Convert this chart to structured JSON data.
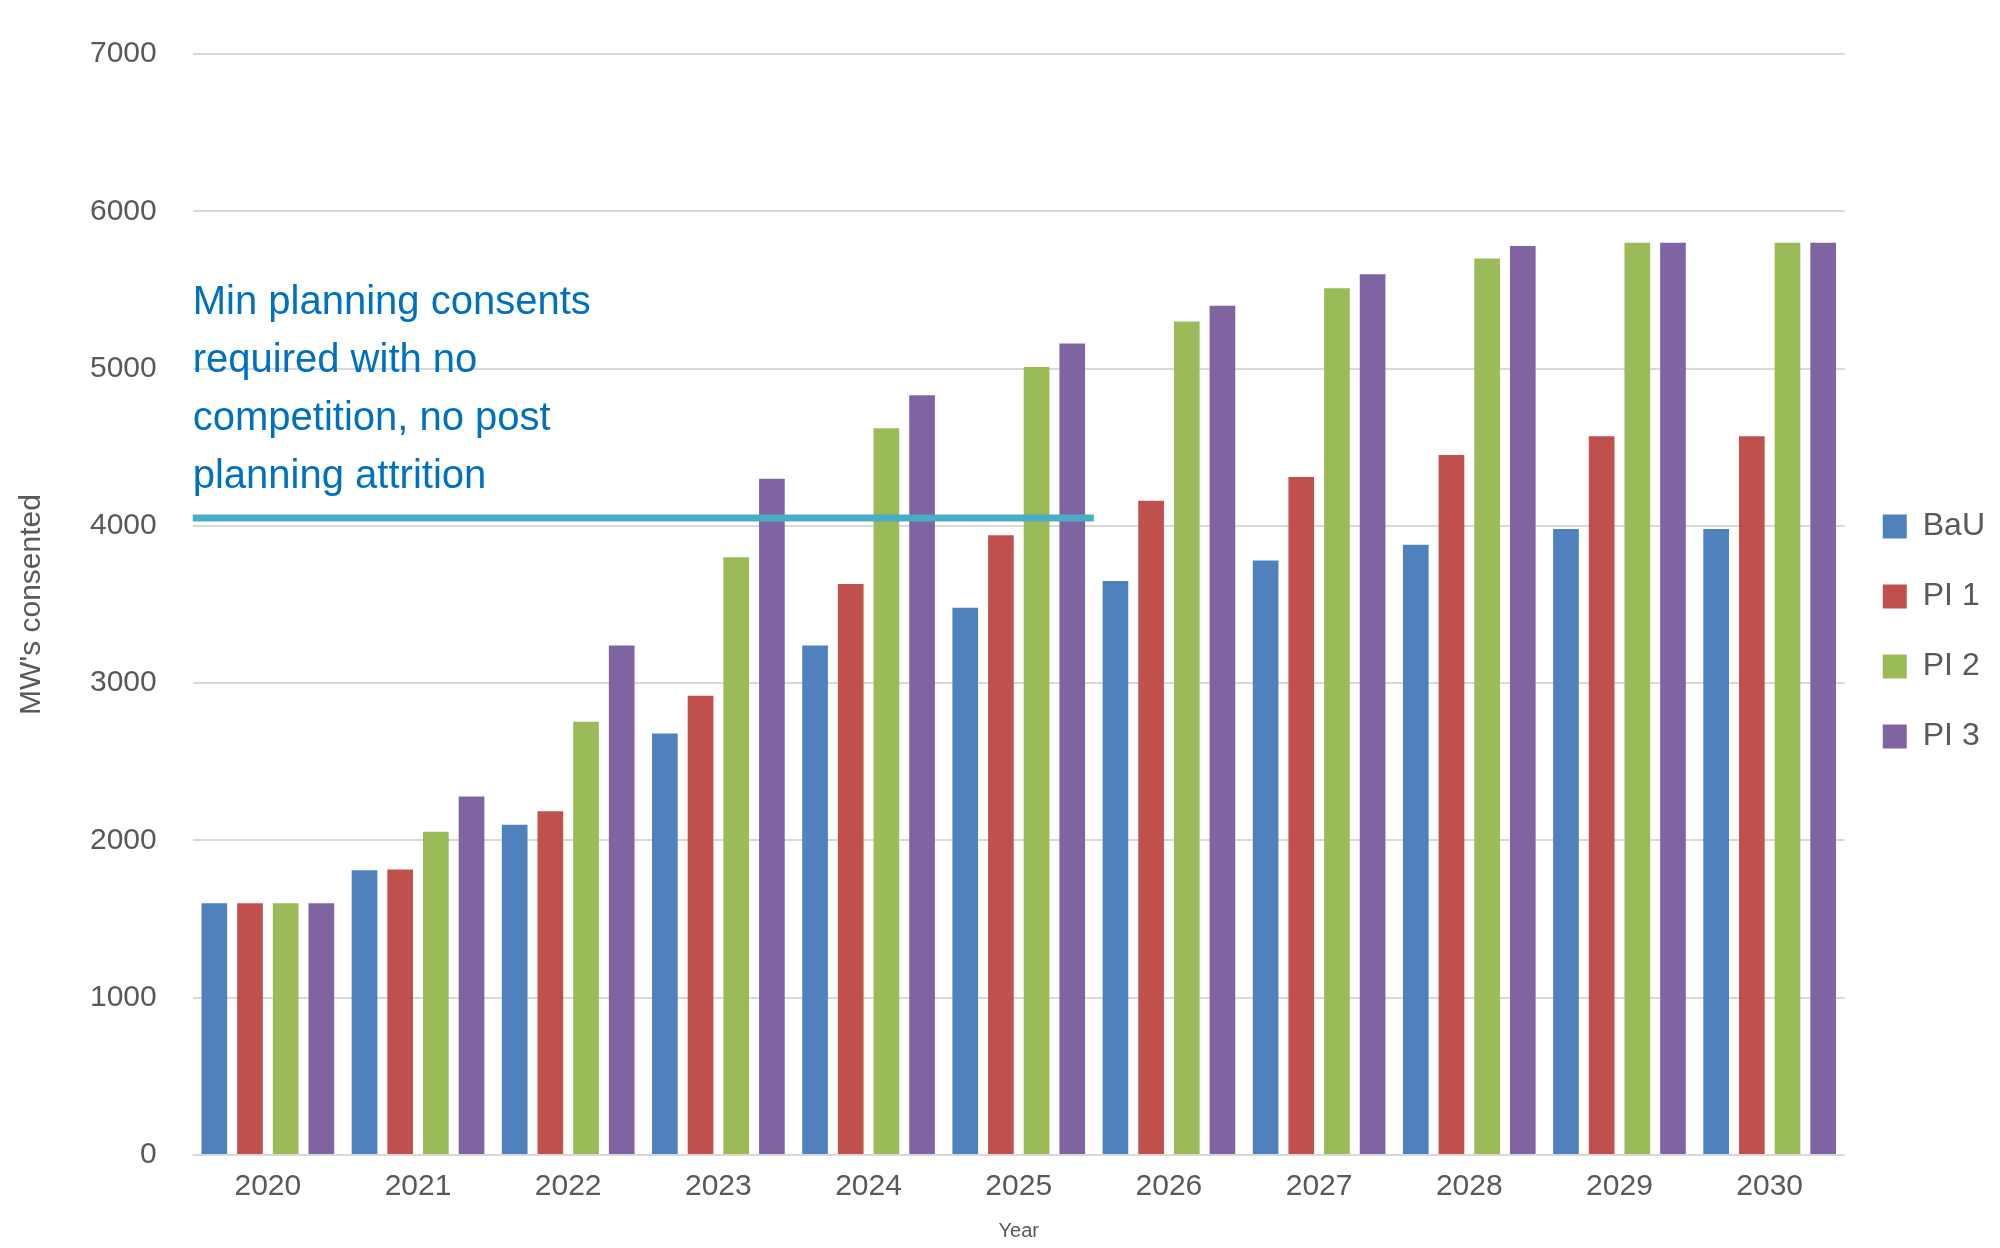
{
  "chart_data": {
    "type": "bar",
    "xlabel": "Year",
    "ylabel": "MW's consented",
    "categories": [
      "2020",
      "2021",
      "2022",
      "2023",
      "2024",
      "2025",
      "2026",
      "2027",
      "2028",
      "2029",
      "2030"
    ],
    "series": [
      {
        "name": "BaU",
        "color": "#4f81bd",
        "values": [
          1600,
          1810,
          2100,
          2680,
          3240,
          3480,
          3650,
          3780,
          3880,
          3980,
          3980
        ]
      },
      {
        "name": "PI 1",
        "color": "#c0504d",
        "values": [
          1600,
          1815,
          2185,
          2920,
          3630,
          3940,
          4160,
          4310,
          4450,
          4570,
          4570
        ]
      },
      {
        "name": "PI 2",
        "color": "#9bbb59",
        "values": [
          1600,
          2055,
          2755,
          3800,
          4620,
          5010,
          5300,
          5510,
          5700,
          5800,
          5800
        ]
      },
      {
        "name": "PI 3",
        "color": "#8064a2",
        "values": [
          1600,
          2280,
          3240,
          4300,
          4830,
          5160,
          5400,
          5600,
          5780,
          5800,
          5800
        ]
      }
    ],
    "ylim": [
      0,
      7000
    ],
    "yticks": [
      0,
      1000,
      2000,
      3000,
      4000,
      5000,
      6000,
      7000
    ],
    "grid": "y",
    "legend": "right",
    "ref_lines": [
      {
        "axis": "y",
        "value": 4050,
        "label": "Min planning consents required with no competition, no post planning attrition",
        "color": "#4bacc6"
      }
    ]
  }
}
